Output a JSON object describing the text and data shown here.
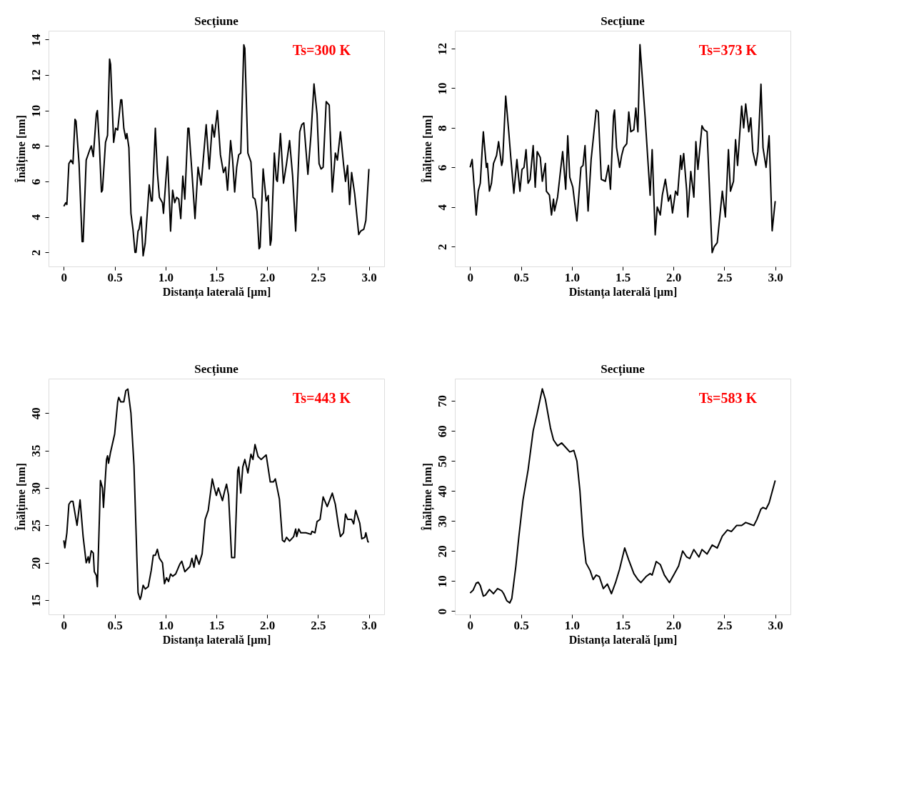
{
  "chart_data": [
    {
      "type": "line",
      "title": "Secțiune",
      "xlabel": "Distanța laterală [µm]",
      "ylabel": "Înălțime [nm]",
      "annotations": [
        "Ts=300 K"
      ],
      "xlim": [
        -0.15,
        3.15
      ],
      "ylim": [
        1.2,
        14.5
      ],
      "xticks": [
        0,
        0.5,
        {
          "value": 1,
          "label": "1.0"
        },
        1.5,
        {
          "value": 2,
          "label": "2.0"
        },
        2.5,
        {
          "value": 3,
          "label": "3.0"
        }
      ],
      "yticks": [
        2,
        4,
        6,
        8,
        10,
        12,
        14
      ],
      "grid": false,
      "series": [
        {
          "color": "#000000",
          "x": [
            0,
            0.02,
            0.03,
            0.05,
            0.07,
            0.09,
            0.11,
            0.12,
            0.15,
            0.18,
            0.19,
            0.22,
            0.25,
            0.27,
            0.29,
            0.32,
            0.33,
            0.35,
            0.37,
            0.38,
            0.41,
            0.43,
            0.45,
            0.46,
            0.49,
            0.51,
            0.53,
            0.56,
            0.57,
            0.59,
            0.61,
            0.62,
            0.64,
            0.66,
            0.68,
            0.7,
            0.71,
            0.73,
            0.74,
            0.76,
            0.78,
            0.8,
            0.83,
            0.84,
            0.86,
            0.87,
            0.9,
            0.92,
            0.94,
            0.97,
            0.98,
            1.02,
            1.05,
            1.07,
            1.09,
            1.11,
            1.13,
            1.15,
            1.17,
            1.19,
            1.22,
            1.23,
            1.26,
            1.29,
            1.32,
            1.35,
            1.4,
            1.43,
            1.46,
            1.48,
            1.51,
            1.54,
            1.57,
            1.59,
            1.61,
            1.64,
            1.66,
            1.68,
            1.7,
            1.72,
            1.74,
            1.77,
            1.78,
            1.81,
            1.84,
            1.86,
            1.88,
            1.9,
            1.92,
            1.93,
            1.96,
            1.99,
            2.01,
            2.03,
            2.04,
            2.07,
            2.09,
            2.1,
            2.13,
            2.16,
            2.19,
            2.22,
            2.25,
            2.28,
            2.32,
            2.34,
            2.36,
            2.4,
            2.43,
            2.46,
            2.49,
            2.51,
            2.53,
            2.55,
            2.58,
            2.61,
            2.64,
            2.67,
            2.69,
            2.72,
            2.75,
            2.77,
            2.79,
            2.81,
            2.83,
            2.86,
            2.9,
            2.92,
            2.95,
            2.97,
            3.0
          ],
          "values": [
            4.6,
            4.8,
            4.7,
            7.0,
            7.2,
            7.0,
            9.5,
            9.4,
            7.0,
            2.6,
            2.6,
            7.2,
            7.7,
            8.0,
            7.4,
            9.8,
            10.0,
            8.0,
            5.4,
            5.5,
            8.2,
            8.6,
            12.9,
            12.6,
            8.2,
            9.0,
            8.9,
            10.6,
            10.6,
            9.0,
            8.4,
            8.7,
            7.9,
            4.2,
            3.3,
            2.0,
            2.0,
            3.2,
            3.3,
            4.0,
            1.8,
            2.5,
            5.0,
            5.8,
            4.9,
            4.9,
            9.0,
            6.5,
            5.1,
            4.8,
            4.2,
            7.4,
            3.2,
            5.5,
            4.8,
            5.1,
            5.0,
            3.9,
            6.3,
            5.0,
            9.0,
            9.0,
            6.5,
            3.9,
            6.8,
            5.8,
            9.2,
            6.7,
            9.2,
            8.5,
            10.0,
            7.5,
            6.5,
            6.8,
            5.5,
            8.3,
            7.2,
            5.4,
            6.8,
            7.5,
            7.6,
            13.7,
            13.5,
            7.6,
            7.1,
            5.1,
            5.0,
            4.3,
            2.2,
            2.3,
            6.7,
            4.9,
            5.2,
            2.4,
            2.7,
            7.6,
            6.1,
            6.0,
            8.7,
            5.9,
            7.0,
            8.3,
            6.3,
            3.2,
            8.8,
            9.2,
            9.3,
            6.4,
            8.6,
            11.5,
            9.8,
            7.0,
            6.7,
            6.8,
            10.5,
            10.3,
            5.4,
            7.6,
            7.2,
            8.8,
            7.0,
            6.0,
            6.9,
            4.7,
            6.5,
            5.3,
            3.0,
            3.2,
            3.3,
            3.8,
            6.7
          ]
        }
      ]
    },
    {
      "type": "line",
      "title": "Secțiune",
      "xlabel": "Distanța laterală [µm]",
      "ylabel": "Înălțime [nm]",
      "annotations": [
        "Ts=373 K"
      ],
      "xlim": [
        -0.15,
        3.15
      ],
      "ylim": [
        1.0,
        12.9
      ],
      "xticks": [
        0,
        0.5,
        {
          "value": 1,
          "label": "1.0"
        },
        1.5,
        {
          "value": 2,
          "label": "2.0"
        },
        2.5,
        {
          "value": 3,
          "label": "3.0"
        }
      ],
      "yticks": [
        2,
        4,
        6,
        8,
        10,
        12
      ],
      "grid": false,
      "series": [
        {
          "color": "#000000",
          "x": [
            0,
            0.02,
            0.04,
            0.06,
            0.08,
            0.1,
            0.12,
            0.13,
            0.16,
            0.17,
            0.19,
            0.21,
            0.23,
            0.26,
            0.28,
            0.31,
            0.32,
            0.35,
            0.38,
            0.4,
            0.43,
            0.46,
            0.49,
            0.51,
            0.53,
            0.55,
            0.57,
            0.59,
            0.62,
            0.64,
            0.66,
            0.69,
            0.71,
            0.74,
            0.75,
            0.78,
            0.8,
            0.82,
            0.83,
            0.86,
            0.91,
            0.94,
            0.96,
            0.98,
            1.01,
            1.05,
            1.09,
            1.11,
            1.13,
            1.16,
            1.19,
            1.24,
            1.26,
            1.29,
            1.33,
            1.36,
            1.38,
            1.41,
            1.42,
            1.44,
            1.47,
            1.49,
            1.51,
            1.54,
            1.56,
            1.58,
            1.61,
            1.63,
            1.65,
            1.67,
            1.72,
            1.77,
            1.79,
            1.82,
            1.84,
            1.87,
            1.89,
            1.92,
            1.95,
            1.97,
            1.99,
            2.02,
            2.04,
            2.07,
            2.08,
            2.1,
            2.13,
            2.14,
            2.17,
            2.2,
            2.22,
            2.24,
            2.28,
            2.3,
            2.33,
            2.38,
            2.4,
            2.43,
            2.48,
            2.51,
            2.54,
            2.56,
            2.59,
            2.61,
            2.63,
            2.67,
            2.69,
            2.71,
            2.74,
            2.76,
            2.78,
            2.81,
            2.83,
            2.86,
            2.88,
            2.91,
            2.94,
            2.97,
            3.0
          ],
          "values": [
            6.0,
            6.4,
            5.0,
            3.6,
            4.8,
            5.2,
            7.0,
            7.8,
            6.0,
            6.2,
            4.8,
            5.2,
            6.2,
            6.6,
            7.3,
            6.1,
            6.3,
            9.6,
            7.8,
            6.5,
            4.7,
            6.4,
            4.8,
            5.9,
            6.0,
            6.9,
            5.2,
            5.4,
            7.1,
            5.0,
            6.8,
            6.5,
            5.3,
            6.2,
            4.8,
            4.6,
            3.6,
            4.4,
            3.8,
            4.5,
            6.8,
            4.9,
            7.6,
            5.5,
            5.0,
            3.3,
            6.0,
            6.1,
            7.1,
            3.8,
            6.4,
            8.9,
            8.8,
            5.4,
            5.3,
            6.1,
            4.9,
            8.6,
            8.9,
            7.0,
            6.0,
            6.6,
            7.0,
            7.2,
            8.8,
            7.8,
            7.9,
            9.0,
            7.8,
            12.2,
            8.6,
            4.6,
            6.9,
            2.6,
            4.0,
            3.6,
            4.6,
            5.4,
            4.3,
            4.6,
            3.7,
            4.8,
            4.6,
            6.6,
            5.9,
            6.7,
            4.8,
            3.5,
            5.8,
            4.5,
            7.3,
            5.9,
            8.1,
            7.9,
            7.8,
            1.7,
            2.0,
            2.2,
            4.8,
            3.5,
            6.9,
            4.8,
            5.3,
            7.4,
            6.1,
            9.1,
            8.0,
            9.2,
            7.8,
            8.5,
            6.8,
            6.1,
            6.8,
            10.2,
            7.0,
            6.0,
            7.6,
            2.8,
            4.3
          ]
        }
      ]
    },
    {
      "type": "line",
      "title": "Secțiune",
      "xlabel": "Distanța laterală [µm]",
      "ylabel": "Înălțime [nm]",
      "annotations": [
        "Ts=443 K"
      ],
      "xlim": [
        -0.15,
        3.15
      ],
      "ylim": [
        13.1,
        44.6
      ],
      "xticks": [
        0,
        0.5,
        {
          "value": 1,
          "label": "1.0"
        },
        1.5,
        {
          "value": 2,
          "label": "2.0"
        },
        2.5,
        {
          "value": 3,
          "label": "3.0"
        }
      ],
      "yticks": [
        15,
        20,
        25,
        30,
        35,
        40
      ],
      "grid": false,
      "series": [
        {
          "color": "#000000",
          "x": [
            0,
            0.01,
            0.03,
            0.05,
            0.07,
            0.09,
            0.13,
            0.16,
            0.19,
            0.22,
            0.24,
            0.25,
            0.27,
            0.29,
            0.3,
            0.32,
            0.33,
            0.35,
            0.36,
            0.38,
            0.39,
            0.42,
            0.43,
            0.44,
            0.46,
            0.5,
            0.53,
            0.54,
            0.56,
            0.59,
            0.61,
            0.63,
            0.66,
            0.69,
            0.72,
            0.73,
            0.75,
            0.76,
            0.78,
            0.8,
            0.83,
            0.86,
            0.88,
            0.9,
            0.92,
            0.94,
            0.97,
            0.99,
            1.01,
            1.03,
            1.05,
            1.07,
            1.1,
            1.14,
            1.16,
            1.19,
            1.24,
            1.26,
            1.28,
            1.3,
            1.33,
            1.36,
            1.39,
            1.42,
            1.46,
            1.48,
            1.5,
            1.52,
            1.56,
            1.58,
            1.6,
            1.62,
            1.65,
            1.68,
            1.71,
            1.72,
            1.74,
            1.76,
            1.78,
            1.81,
            1.84,
            1.86,
            1.88,
            1.91,
            1.94,
            1.99,
            2.03,
            2.06,
            2.08,
            2.12,
            2.15,
            2.17,
            2.19,
            2.22,
            2.26,
            2.28,
            2.29,
            2.31,
            2.33,
            2.38,
            2.43,
            2.44,
            2.47,
            2.49,
            2.52,
            2.55,
            2.59,
            2.64,
            2.67,
            2.7,
            2.72,
            2.75,
            2.77,
            2.79,
            2.83,
            2.85,
            2.87,
            2.91,
            2.93,
            2.96,
            2.97,
            2.99,
            3.0
          ],
          "values": [
            23.0,
            22.0,
            24.0,
            27.8,
            28.2,
            28.2,
            25.0,
            28.4,
            23.5,
            20.0,
            20.8,
            20.0,
            21.6,
            21.3,
            18.8,
            18.3,
            16.8,
            26.0,
            31.0,
            30.0,
            27.4,
            33.8,
            34.3,
            33.3,
            34.8,
            37.2,
            41.5,
            42.1,
            41.5,
            41.5,
            43.0,
            43.2,
            40.0,
            33.0,
            20.0,
            16.0,
            15.1,
            15.5,
            17.0,
            16.5,
            16.8,
            19.0,
            21.0,
            21.0,
            21.8,
            20.6,
            20.0,
            17.2,
            18.0,
            17.5,
            18.5,
            18.2,
            18.5,
            19.8,
            20.2,
            18.8,
            19.5,
            20.6,
            19.4,
            21.0,
            19.8,
            21.2,
            25.8,
            27.0,
            31.2,
            30.0,
            29.0,
            30.0,
            28.3,
            29.5,
            30.5,
            29.0,
            20.7,
            20.7,
            32.3,
            32.8,
            29.3,
            32.8,
            33.8,
            32.0,
            34.5,
            33.8,
            35.8,
            34.2,
            33.8,
            34.4,
            30.8,
            30.8,
            31.2,
            28.5,
            23.0,
            22.8,
            23.4,
            22.9,
            23.5,
            24.5,
            23.5,
            24.5,
            24.0,
            24.0,
            23.8,
            24.2,
            24.0,
            25.5,
            25.8,
            28.8,
            27.5,
            29.3,
            27.8,
            25.0,
            23.5,
            24.0,
            26.5,
            25.8,
            25.8,
            25.2,
            27.0,
            25.3,
            23.2,
            23.4,
            24.0,
            22.8,
            22.8
          ]
        }
      ]
    },
    {
      "type": "line",
      "title": "Secțiune",
      "xlabel": "Distanța laterală [µm]",
      "ylabel": "Înălțime [nm]",
      "annotations": [
        "Ts=583 K"
      ],
      "xlim": [
        -0.15,
        3.15
      ],
      "ylim": [
        -1.1,
        77.4
      ],
      "xticks": [
        0,
        0.5,
        {
          "value": 1,
          "label": "1.0"
        },
        1.5,
        {
          "value": 2,
          "label": "2.0"
        },
        2.5,
        {
          "value": 3,
          "label": "3.0"
        }
      ],
      "yticks": [
        0,
        10,
        20,
        30,
        40,
        50,
        60,
        70
      ],
      "grid": false,
      "series": [
        {
          "color": "#000000",
          "x": [
            0,
            0.03,
            0.06,
            0.08,
            0.1,
            0.13,
            0.15,
            0.19,
            0.23,
            0.27,
            0.31,
            0.33,
            0.36,
            0.39,
            0.41,
            0.45,
            0.48,
            0.52,
            0.57,
            0.62,
            0.66,
            0.71,
            0.74,
            0.79,
            0.82,
            0.86,
            0.9,
            0.94,
            0.98,
            1.02,
            1.05,
            1.08,
            1.11,
            1.14,
            1.18,
            1.21,
            1.24,
            1.27,
            1.31,
            1.35,
            1.39,
            1.43,
            1.47,
            1.52,
            1.56,
            1.61,
            1.65,
            1.68,
            1.73,
            1.77,
            1.79,
            1.83,
            1.87,
            1.91,
            1.96,
            2.01,
            2.05,
            2.09,
            2.13,
            2.16,
            2.2,
            2.25,
            2.28,
            2.33,
            2.38,
            2.43,
            2.48,
            2.53,
            2.57,
            2.62,
            2.67,
            2.71,
            2.75,
            2.79,
            2.82,
            2.86,
            2.88,
            2.91,
            2.94,
            3.0
          ],
          "values": [
            6.0,
            7.0,
            9.3,
            9.6,
            8.5,
            5.0,
            5.3,
            7.2,
            5.8,
            7.5,
            6.8,
            5.8,
            3.5,
            2.7,
            4.2,
            15.0,
            25.0,
            37.0,
            47.0,
            60.0,
            66.0,
            74.0,
            70.5,
            61.0,
            57.0,
            55.0,
            56.0,
            54.5,
            53.0,
            53.5,
            50.0,
            40.0,
            25.0,
            16.0,
            13.5,
            10.5,
            12.0,
            11.5,
            7.5,
            9.0,
            5.8,
            9.5,
            14.0,
            21.0,
            17.0,
            12.5,
            10.5,
            9.5,
            11.5,
            12.5,
            12.0,
            16.5,
            15.5,
            12.0,
            9.5,
            12.5,
            15.0,
            20.0,
            18.0,
            17.5,
            20.5,
            18.0,
            20.5,
            19.0,
            22.0,
            21.0,
            25.0,
            27.0,
            26.5,
            28.5,
            28.5,
            29.5,
            29.0,
            28.5,
            30.5,
            34.0,
            34.5,
            34.0,
            36.0,
            43.5
          ]
        }
      ]
    }
  ]
}
